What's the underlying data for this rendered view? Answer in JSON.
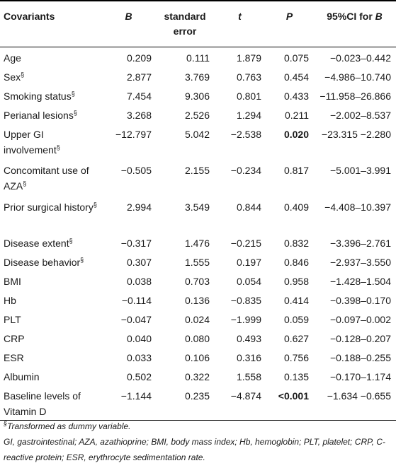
{
  "table": {
    "headers": {
      "covariants": "Covariants",
      "b": "B",
      "standard_error": "standard error",
      "t": "t",
      "p": "P",
      "ci_prefix": "95%CI for ",
      "ci_b": "B"
    },
    "rows": [
      {
        "name": "Age",
        "sup": "",
        "b": "0.209",
        "se": "0.111",
        "t": "1.879",
        "p": "0.075",
        "p_bold": false,
        "ci": "−0.023–0.442",
        "height": 28
      },
      {
        "name": "Sex",
        "sup": "§",
        "b": "2.877",
        "se": "3.769",
        "t": "0.763",
        "p": "0.454",
        "p_bold": false,
        "ci": "−4.986–10.740",
        "height": 27
      },
      {
        "name": "Smoking status",
        "sup": "§",
        "b": "7.454",
        "se": "9.306",
        "t": "0.801",
        "p": "0.433",
        "p_bold": false,
        "ci": "−11.958–26.866",
        "height": 27
      },
      {
        "name": "Perianal lesions",
        "sup": "§",
        "b": "3.268",
        "se": "2.526",
        "t": "1.294",
        "p": "0.211",
        "p_bold": false,
        "ci": "−2.002–8.537",
        "height": 27
      },
      {
        "name": "Upper GI involvement",
        "sup": "§",
        "b": "−12.797",
        "se": "5.042",
        "t": "−2.538",
        "p": "0.020",
        "p_bold": true,
        "ci": "−23.315 −2.280",
        "height": 51
      },
      {
        "name": "Concomitant use of AZA",
        "sup": "§",
        "b": "−0.505",
        "se": "2.155",
        "t": "−0.234",
        "p": "0.817",
        "p_bold": false,
        "ci": "−5.001–3.991",
        "height": 52
      },
      {
        "name": "Prior surgical history",
        "sup": "§",
        "b": "2.994",
        "se": "3.549",
        "t": "0.844",
        "p": "0.409",
        "p_bold": false,
        "ci": "−4.408–10.397",
        "height": 51
      },
      {
        "name": "Disease extent",
        "sup": "§",
        "b": "−0.317",
        "se": "1.476",
        "t": "−0.215",
        "p": "0.832",
        "p_bold": false,
        "ci": "−3.396–2.761",
        "height": 27
      },
      {
        "name": "Disease behavior",
        "sup": "§",
        "b": "0.307",
        "se": "1.555",
        "t": "0.197",
        "p": "0.846",
        "p_bold": false,
        "ci": "−2.937–3.550",
        "height": 27
      },
      {
        "name": "BMI",
        "sup": "",
        "b": "0.038",
        "se": "0.703",
        "t": "0.054",
        "p": "0.958",
        "p_bold": false,
        "ci": "−1.428–1.504",
        "height": 27
      },
      {
        "name": "Hb",
        "sup": "",
        "b": "−0.114",
        "se": "0.136",
        "t": "−0.835",
        "p": "0.414",
        "p_bold": false,
        "ci": "−0.398–0.170",
        "height": 27
      },
      {
        "name": "PLT",
        "sup": "",
        "b": "−0.047",
        "se": "0.024",
        "t": "−1.999",
        "p": "0.059",
        "p_bold": false,
        "ci": "−0.097–0.002",
        "height": 27
      },
      {
        "name": "CRP",
        "sup": "",
        "b": "0.040",
        "se": "0.080",
        "t": "0.493",
        "p": "0.627",
        "p_bold": false,
        "ci": "−0.128–0.207",
        "height": 27
      },
      {
        "name": "ESR",
        "sup": "",
        "b": "0.033",
        "se": "0.106",
        "t": "0.316",
        "p": "0.756",
        "p_bold": false,
        "ci": "−0.188–0.255",
        "height": 27
      },
      {
        "name": "Albumin",
        "sup": "",
        "b": "0.502",
        "se": "0.322",
        "t": "1.558",
        "p": "0.135",
        "p_bold": false,
        "ci": "−0.170–1.174",
        "height": 27
      },
      {
        "name": "Baseline levels of Vitamin D",
        "sup": "",
        "b": "−1.144",
        "se": "0.235",
        "t": "−4.874",
        "p": "<0.001",
        "p_bold": true,
        "ci": "−1.634 −0.655",
        "height": 49
      }
    ]
  },
  "footnotes": {
    "dummy_symbol": "§",
    "dummy_text": "Transformed as dummy variable.",
    "abbreviations": "GI, gastrointestinal; AZA, azathioprine; BMI, body mass index; Hb, hemoglobin; PLT, platelet; CRP, C-reactive protein; ESR, erythrocyte sedimentation rate."
  }
}
